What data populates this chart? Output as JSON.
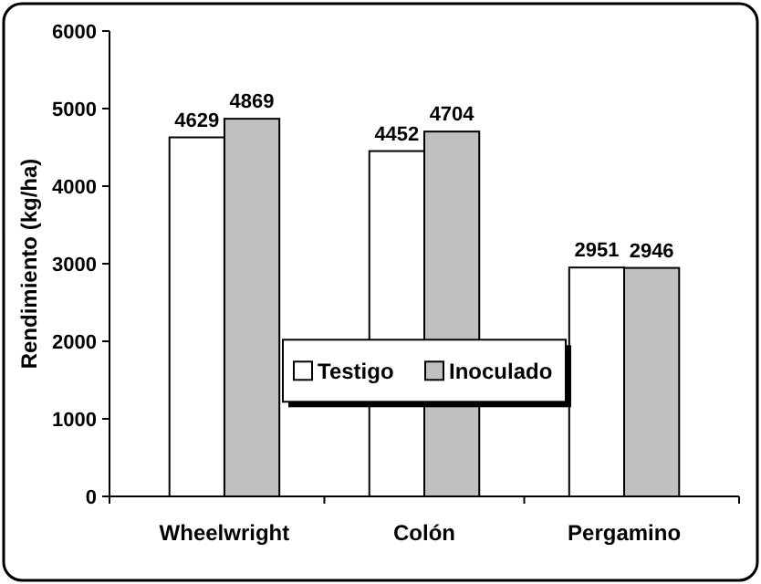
{
  "chart_data": {
    "type": "bar",
    "ylabel": "Rendimiento (kg/ha)",
    "categories": [
      "Wheelwright",
      "Colón",
      "Pergamino"
    ],
    "series": [
      {
        "name": "Testigo",
        "color": "#ffffff",
        "values": [
          4629,
          4452,
          2951
        ]
      },
      {
        "name": "Inoculado",
        "color": "#c0c0c0",
        "values": [
          4869,
          4704,
          2946
        ]
      }
    ],
    "ylim": [
      0,
      6000
    ],
    "yticks": [
      0,
      1000,
      2000,
      3000,
      4000,
      5000,
      6000
    ],
    "grid": false,
    "legend": "center",
    "data_labels": true
  }
}
